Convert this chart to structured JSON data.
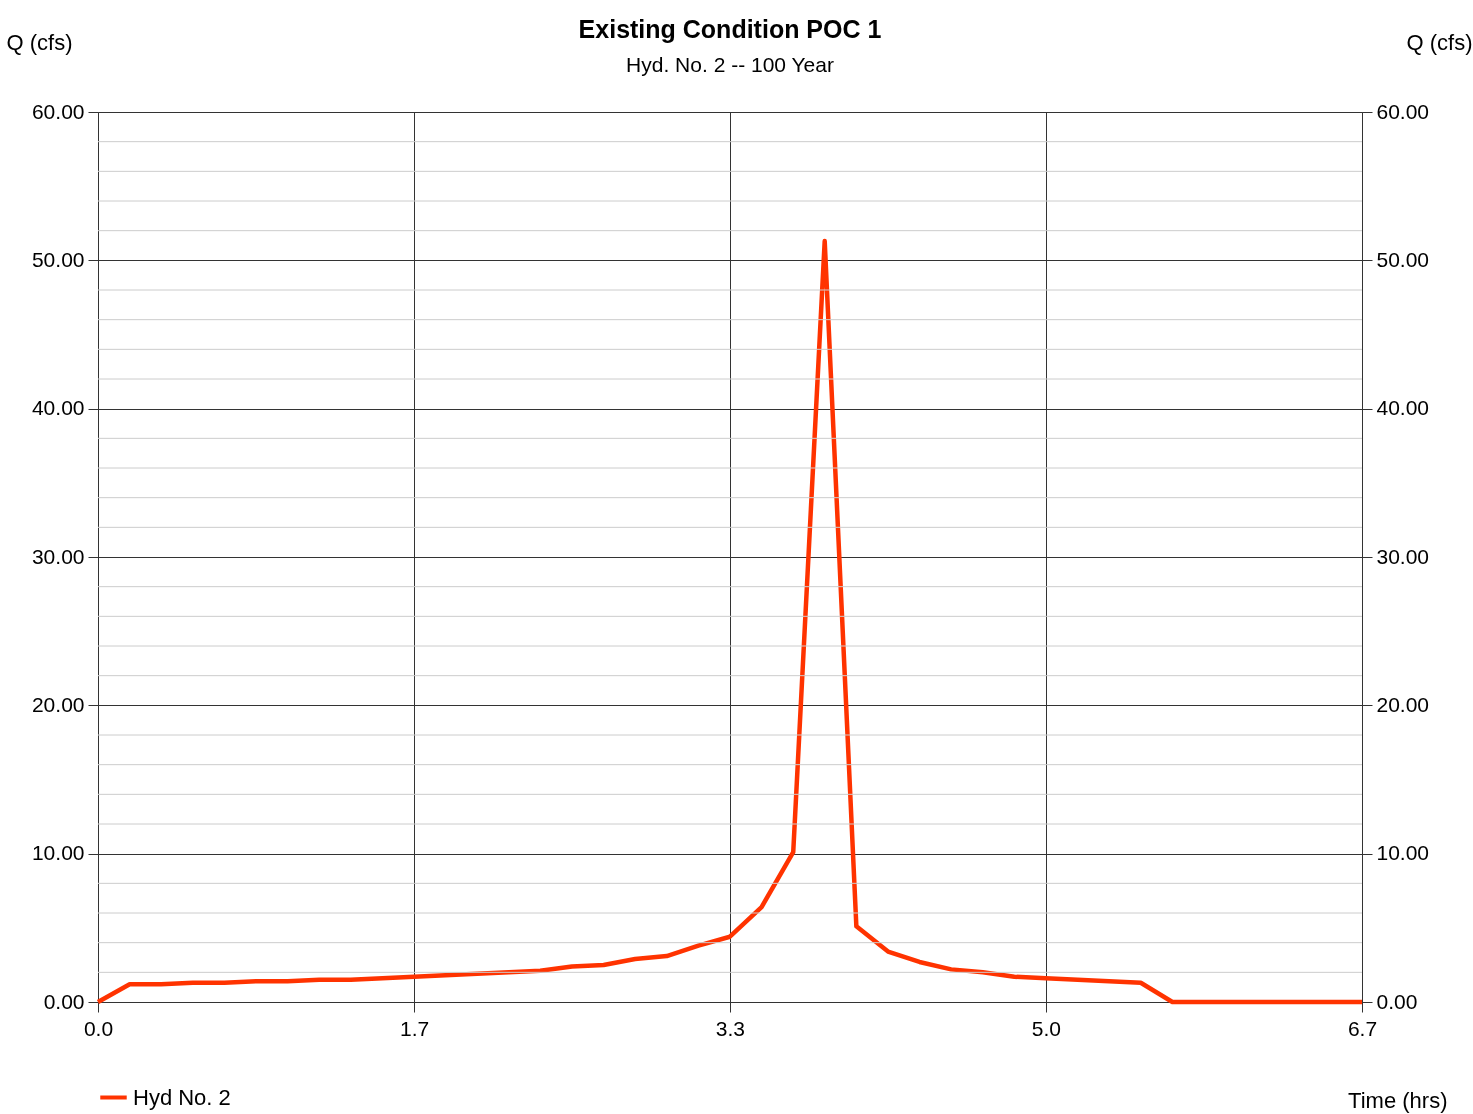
{
  "chart_data": {
    "type": "line",
    "title": "Existing Condition POC 1",
    "subtitle": "Hyd. No. 2 -- 100 Year",
    "xlabel": "Time (hrs)",
    "ylabel": "Q (cfs)",
    "y2label": "Q (cfs)",
    "xlim": [
      0,
      6.667
    ],
    "xticks": [
      {
        "value": 0,
        "label": "0.0"
      },
      {
        "value": 1.667,
        "label": "1.7"
      },
      {
        "value": 3.333,
        "label": "3.3"
      },
      {
        "value": 5.0,
        "label": "5.0"
      },
      {
        "value": 6.667,
        "label": "6.7"
      }
    ],
    "ylim": [
      0,
      60
    ],
    "yticks": [
      {
        "value": 0,
        "label": "0.00"
      },
      {
        "value": 2,
        "label": null
      },
      {
        "value": 4,
        "label": null
      },
      {
        "value": 6,
        "label": null
      },
      {
        "value": 8,
        "label": null
      },
      {
        "value": 10,
        "label": "10.00"
      },
      {
        "value": 12,
        "label": null
      },
      {
        "value": 14,
        "label": null
      },
      {
        "value": 16,
        "label": null
      },
      {
        "value": 18,
        "label": null
      },
      {
        "value": 20,
        "label": "20.00"
      },
      {
        "value": 22,
        "label": null
      },
      {
        "value": 24,
        "label": null
      },
      {
        "value": 26,
        "label": null
      },
      {
        "value": 28,
        "label": null
      },
      {
        "value": 30,
        "label": "30.00"
      },
      {
        "value": 32,
        "label": null
      },
      {
        "value": 34,
        "label": null
      },
      {
        "value": 36,
        "label": null
      },
      {
        "value": 38,
        "label": null
      },
      {
        "value": 40,
        "label": "40.00"
      },
      {
        "value": 42,
        "label": null
      },
      {
        "value": 44,
        "label": null
      },
      {
        "value": 46,
        "label": null
      },
      {
        "value": 48,
        "label": null
      },
      {
        "value": 50,
        "label": "50.00"
      },
      {
        "value": 52,
        "label": null
      },
      {
        "value": 54,
        "label": null
      },
      {
        "value": 56,
        "label": null
      },
      {
        "value": 58,
        "label": null
      },
      {
        "value": 60,
        "label": "60.00"
      }
    ],
    "y2lim": [
      0,
      60
    ],
    "y2ticks": [
      {
        "value": 0,
        "label": "0.00"
      },
      {
        "value": 10,
        "label": "10.00"
      },
      {
        "value": 20,
        "label": "20.00"
      },
      {
        "value": 30,
        "label": "30.00"
      },
      {
        "value": 40,
        "label": "40.00"
      },
      {
        "value": 50,
        "label": "50.00"
      },
      {
        "value": 60,
        "label": "60.00"
      }
    ],
    "grid": true,
    "legend": "bottom left",
    "marker": "none",
    "line_style": "solid",
    "x": [
      0,
      0.167,
      0.333,
      0.5,
      0.667,
      0.833,
      1.0,
      1.167,
      1.333,
      1.5,
      1.667,
      1.833,
      2.0,
      2.167,
      2.333,
      2.5,
      2.667,
      2.833,
      3.0,
      3.167,
      3.333,
      3.5,
      3.667,
      3.833,
      4.0,
      4.167,
      4.333,
      4.5,
      4.667,
      4.833,
      5.0,
      5.167,
      5.333,
      5.5,
      5.667,
      5.833,
      6.0,
      6.167,
      6.333,
      6.5,
      6.667
    ],
    "series": [
      {
        "name": "Hyd No. 2",
        "color": "#ff3300",
        "values": [
          0,
          1.2,
          1.2,
          1.3,
          1.3,
          1.4,
          1.4,
          1.5,
          1.5,
          1.6,
          1.7,
          1.8,
          1.9,
          2.0,
          2.1,
          2.4,
          2.5,
          2.9,
          3.1,
          3.8,
          4.4,
          6.4,
          10.1,
          51.3,
          5.1,
          3.4,
          2.7,
          2.2,
          2.0,
          1.7,
          1.6,
          1.5,
          1.4,
          1.3,
          0,
          0,
          0,
          0,
          0,
          0,
          0
        ]
      }
    ]
  }
}
